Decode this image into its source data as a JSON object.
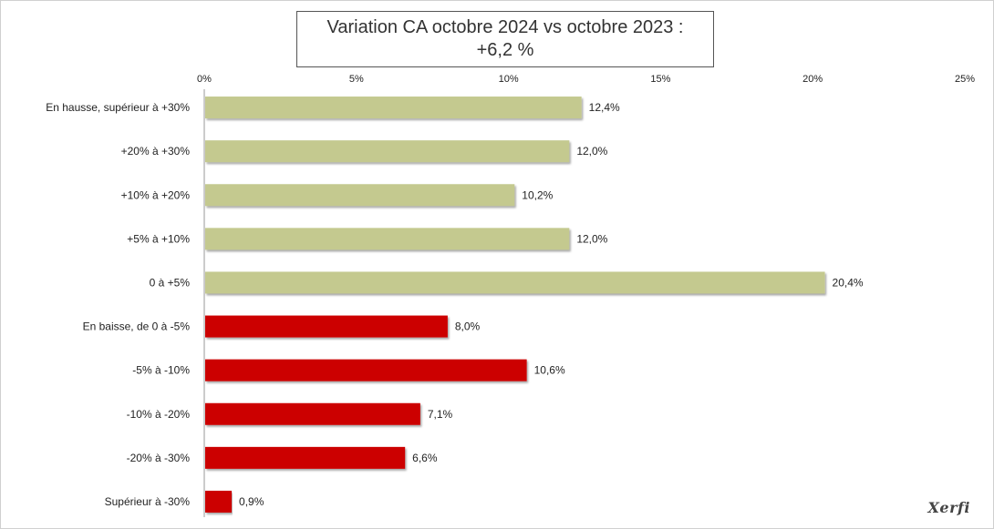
{
  "chart_data": {
    "type": "bar",
    "orientation": "horizontal",
    "title": "Variation CA octobre 2024 vs octobre 2023 :",
    "subtitle": "+6,2 %",
    "categories": [
      "En hausse, supérieur à +30%",
      "+20% à +30%",
      "+10% à +20%",
      "+5% à +10%",
      "0 à +5%",
      "En baisse, de 0 à -5%",
      "-5% à -10%",
      "-10% à -20%",
      "-20% à -30%",
      "Supérieur à -30%"
    ],
    "values": [
      12.4,
      12.0,
      10.2,
      12.0,
      20.4,
      8.0,
      10.6,
      7.1,
      6.6,
      0.9
    ],
    "value_labels": [
      "12,4%",
      "12,0%",
      "10,2%",
      "12,0%",
      "20,4%",
      "8,0%",
      "10,6%",
      "7,1%",
      "6,6%",
      "0,9%"
    ],
    "bar_colors": [
      "#c4c98f",
      "#c4c98f",
      "#c4c98f",
      "#c4c98f",
      "#c4c98f",
      "#cc0000",
      "#cc0000",
      "#cc0000",
      "#cc0000",
      "#cc0000"
    ],
    "xlim": [
      0,
      25
    ],
    "xticks": [
      0,
      5,
      10,
      15,
      20,
      25
    ],
    "xtick_labels": [
      "0%",
      "5%",
      "10%",
      "15%",
      "20%",
      "25%"
    ],
    "axis_position": "top",
    "grid": false,
    "legend": "none"
  },
  "logo_text": "Xerfi"
}
